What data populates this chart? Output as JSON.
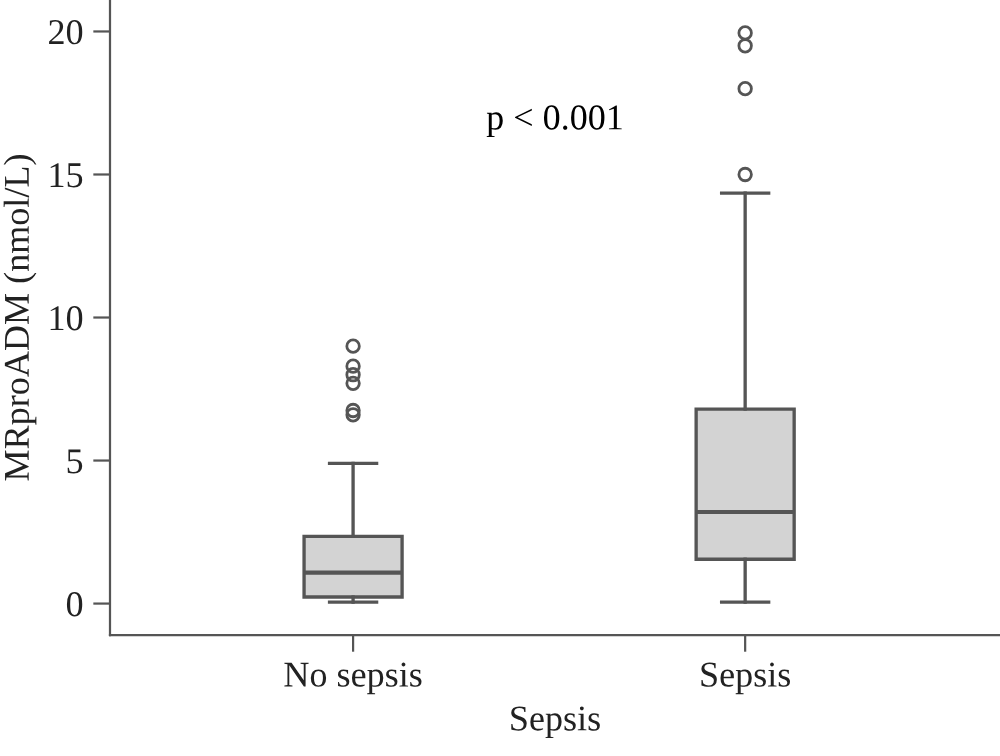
{
  "chart_data": {
    "type": "box",
    "categories": [
      "No sepsis",
      "Sepsis"
    ],
    "boxes": [
      {
        "low": 0.05,
        "q1": 0.23,
        "median": 1.08,
        "q3": 2.35,
        "high": 4.9,
        "outliers": [
          6.6,
          6.75,
          7.7,
          8.0,
          8.3,
          9.0
        ]
      },
      {
        "low": 0.05,
        "q1": 1.55,
        "median": 3.2,
        "q3": 6.8,
        "high": 14.35,
        "outliers": [
          15.0,
          18.0,
          19.5,
          19.95
        ]
      }
    ],
    "color": "#d3d3d3",
    "xlabel": "Sepsis",
    "ylabel": "MRproADM (nmol/L)",
    "ylim": [
      -1.1,
      21.1
    ],
    "yticks": [
      0,
      5,
      10,
      15,
      20
    ],
    "annotations": [
      "p < 0.001"
    ],
    "grid": false,
    "legend": false
  }
}
